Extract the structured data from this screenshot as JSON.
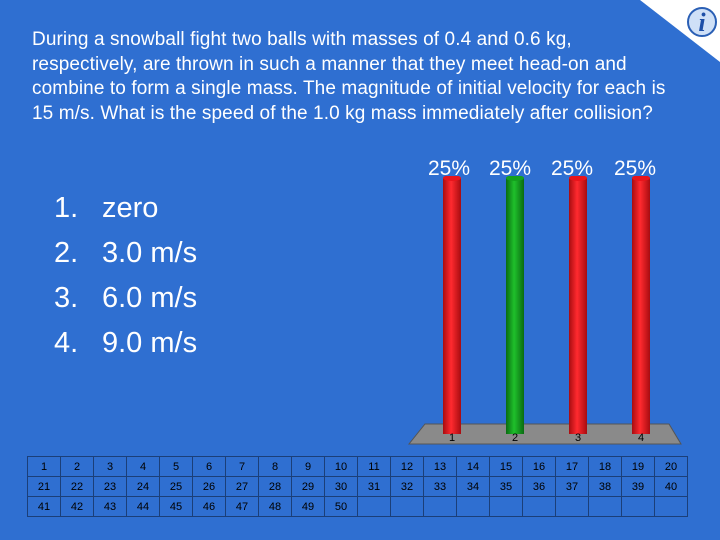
{
  "question": "During a snowball fight two balls with masses of 0.4 and 0.6 kg, respectively, are thrown in such a manner that they meet head-on and combine to form a single mass. The magnitude of initial velocity for each is 15 m/s. What is the speed of the 1.0 kg mass immediately after collision?",
  "answers": [
    {
      "num": "1.",
      "text": "zero"
    },
    {
      "num": "2.",
      "text": "3.0 m/s"
    },
    {
      "num": "3.",
      "text": "6.0 m/s"
    },
    {
      "num": "4.",
      "text": "9.0 m/s"
    }
  ],
  "logo_letter": "i",
  "chart_data": {
    "type": "bar",
    "categories": [
      "1",
      "2",
      "3",
      "4"
    ],
    "values": [
      25,
      25,
      25,
      25
    ],
    "percent_labels": [
      "25%",
      "25%",
      "25%",
      "25%"
    ],
    "colors": [
      "#e8141b",
      "#14a01e",
      "#e8141b",
      "#e8141b"
    ],
    "ylim": [
      0,
      25
    ]
  },
  "keypad": [
    [
      "1",
      "2",
      "3",
      "4",
      "5",
      "6",
      "7",
      "8",
      "9",
      "10",
      "11",
      "12",
      "13",
      "14",
      "15",
      "16",
      "17",
      "18",
      "19",
      "20"
    ],
    [
      "21",
      "22",
      "23",
      "24",
      "25",
      "26",
      "27",
      "28",
      "29",
      "30",
      "31",
      "32",
      "33",
      "34",
      "35",
      "36",
      "37",
      "38",
      "39",
      "40"
    ],
    [
      "41",
      "42",
      "43",
      "44",
      "45",
      "46",
      "47",
      "48",
      "49",
      "50",
      "",
      "",
      "",
      "",
      "",
      "",
      "",
      "",
      "",
      ""
    ]
  ]
}
